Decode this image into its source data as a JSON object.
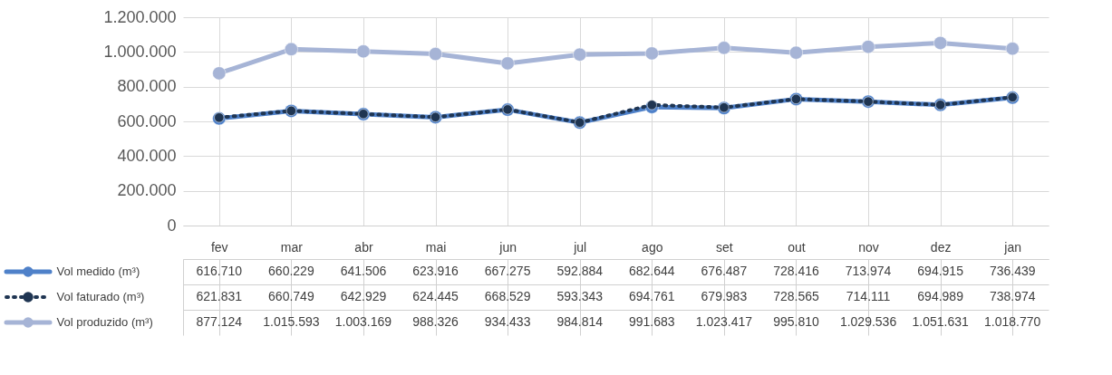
{
  "chart_data": {
    "type": "line",
    "categories": [
      "fev",
      "mar",
      "abr",
      "mai",
      "jun",
      "jul",
      "ago",
      "set",
      "out",
      "nov",
      "dez",
      "jan"
    ],
    "series": [
      {
        "name": "Vol medido (m³)",
        "color": "#4f81c9",
        "values": [
          616710,
          660229,
          641506,
          623916,
          667275,
          592884,
          682644,
          676487,
          728416,
          713974,
          694915,
          736439
        ],
        "value_labels": [
          "616.710",
          "660.229",
          "641.506",
          "623.916",
          "667.275",
          "592.884",
          "682.644",
          "676.487",
          "728.416",
          "713.974",
          "694.915",
          "736.439"
        ]
      },
      {
        "name": "Vol faturado (m³)",
        "color": "#1f3552",
        "line_style": "dotted",
        "values": [
          621831,
          660749,
          642929,
          624445,
          668529,
          593343,
          694761,
          679983,
          728565,
          714111,
          694989,
          738974
        ],
        "value_labels": [
          "621.831",
          "660.749",
          "642.929",
          "624.445",
          "668.529",
          "593.343",
          "694.761",
          "679.983",
          "728.565",
          "714.111",
          "694.989",
          "738.974"
        ]
      },
      {
        "name": "Vol produzido (m³)",
        "color": "#a6b4d6",
        "values": [
          877124,
          1015593,
          1003169,
          988326,
          934433,
          984814,
          991683,
          1023417,
          995810,
          1029536,
          1051631,
          1018770
        ],
        "value_labels": [
          "877.124",
          "1.015.593",
          "1.003.169",
          "988.326",
          "934.433",
          "984.814",
          "991.683",
          "1.023.417",
          "995.810",
          "1.029.536",
          "1.051.631",
          "1.018.770"
        ]
      }
    ],
    "ylim": [
      0,
      1200000
    ],
    "yticks": [
      {
        "value": 0,
        "label": "0"
      },
      {
        "value": 200000,
        "label": "200.000"
      },
      {
        "value": 400000,
        "label": "400.000"
      },
      {
        "value": 600000,
        "label": "600.000"
      },
      {
        "value": 800000,
        "label": "800.000"
      },
      {
        "value": 1000000,
        "label": "1.000.000"
      },
      {
        "value": 1200000,
        "label": "1.200.000"
      }
    ],
    "grid": true,
    "marker": "circle",
    "legend": "bottom left",
    "tick_labels": "y"
  }
}
